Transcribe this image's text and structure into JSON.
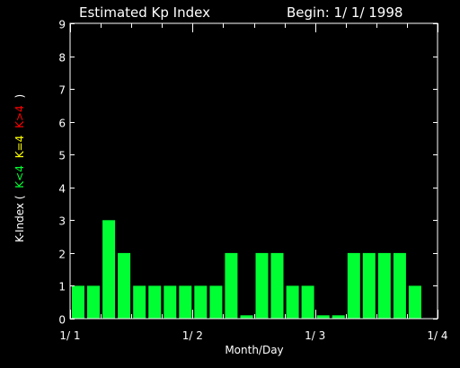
{
  "header": {
    "title": "Estimated Kp Index",
    "begin": "Begin: 1/ 1/ 1998"
  },
  "ylabel": {
    "prefix": "K-Index (",
    "low": "K<4",
    "mid": "K=4",
    "high": "K>4",
    "suffix": ")"
  },
  "colors": {
    "background": "#000000",
    "axis": "#ffffff",
    "low": "#00ff33",
    "mid": "#ffff00",
    "high": "#ff0000"
  },
  "chart_data": {
    "type": "bar",
    "title": "Estimated Kp Index",
    "subtitle": "Begin: 1/ 1/ 1998",
    "xlabel": "Month/Day",
    "ylabel": "K-Index ( K<4 K=4 K>4 )",
    "ylim": [
      0,
      9
    ],
    "yticks": [
      "0",
      "1",
      "2",
      "3",
      "4",
      "5",
      "6",
      "7",
      "8",
      "9"
    ],
    "xticks": [
      "1/ 1",
      "1/ 2",
      "1/ 3",
      "1/ 4"
    ],
    "values": [
      1,
      1,
      3,
      2,
      1,
      1,
      1,
      1,
      1,
      1,
      2,
      0.1,
      2,
      2,
      1,
      1,
      0.1,
      0.1,
      2,
      2,
      2,
      2,
      1
    ]
  }
}
